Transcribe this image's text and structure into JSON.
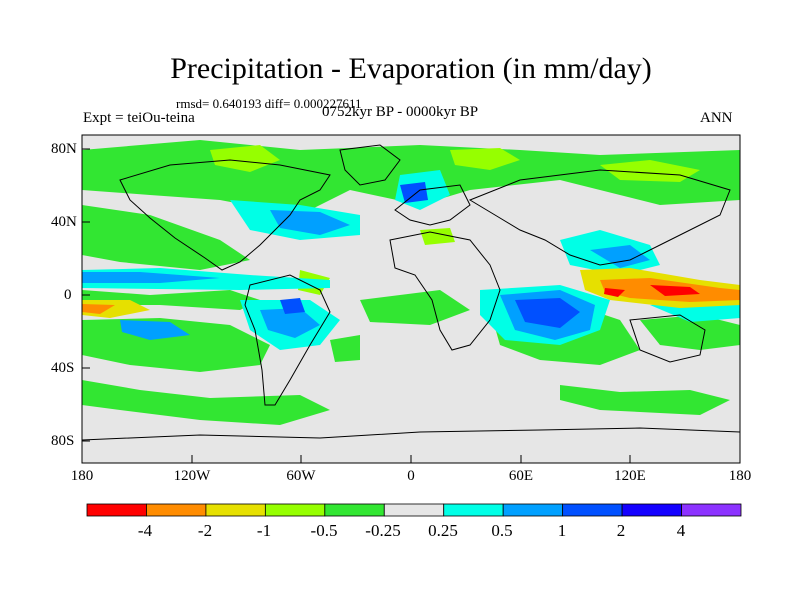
{
  "title": "Precipitation - Evaporation (in mm/day)",
  "stats": "rmsd= 0.640193 diff= 0.000227611",
  "experiment": "Expt = teiOu-teina",
  "period": "0752kyr BP - 0000kyr BP",
  "season": "ANN",
  "lat_ticks": [
    "80N",
    "40N",
    "0",
    "40S",
    "80S"
  ],
  "lon_ticks": [
    "180",
    "120W",
    "60W",
    "0",
    "60E",
    "120E",
    "180"
  ],
  "colorbar": {
    "labels": [
      "-4",
      "-2",
      "-1",
      "-0.5",
      "-0.25",
      "0.25",
      "0.5",
      "1",
      "2",
      "4"
    ],
    "colors": [
      "#ff0000",
      "#ff8c00",
      "#e6e000",
      "#96ff00",
      "#32e632",
      "#e6e6e6",
      "#00ffe6",
      "#00a0ff",
      "#0050ff",
      "#1400ff",
      "#8c32ff"
    ]
  }
}
